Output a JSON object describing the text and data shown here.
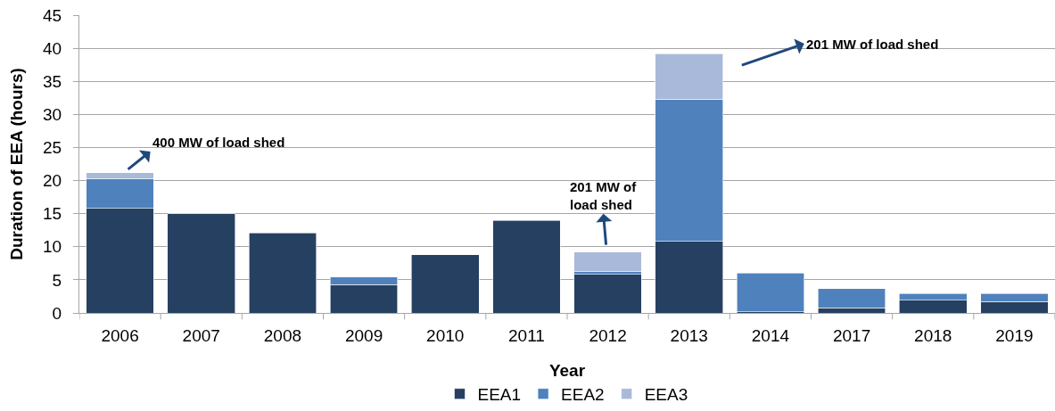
{
  "chart_data": {
    "type": "bar",
    "stacked": true,
    "categories": [
      "2006",
      "2007",
      "2008",
      "2009",
      "2010",
      "2011",
      "2012",
      "2013",
      "2014",
      "2017",
      "2018",
      "2019"
    ],
    "series": [
      {
        "name": "EEA1",
        "color": "#264061",
        "values": [
          15.8,
          15.0,
          12.1,
          4.3,
          8.8,
          14.0,
          5.8,
          10.8,
          0.2,
          0.8,
          1.9,
          1.7
        ]
      },
      {
        "name": "EEA2",
        "color": "#4f81bd",
        "values": [
          4.5,
          null,
          null,
          1.1,
          null,
          null,
          0.4,
          21.5,
          5.8,
          2.9,
          1.0,
          1.2
        ]
      },
      {
        "name": "EEA3",
        "color": "#a9b9d9",
        "values": [
          0.9,
          null,
          null,
          null,
          null,
          null,
          3.0,
          6.9,
          null,
          null,
          null,
          null
        ]
      }
    ],
    "xlabel": "Year",
    "ylabel": "Duration of EEA (hours)",
    "ylim": [
      0,
      45
    ],
    "yticks": [
      0,
      5,
      10,
      15,
      20,
      25,
      30,
      35,
      40,
      45
    ],
    "grid": "y",
    "legend": "bottom",
    "annotations": [
      {
        "text": "400 MW of load shed",
        "x": "2006",
        "y": 21.3
      },
      {
        "text": "201 MW of\nload shed",
        "x": "2012",
        "y": 9.2
      },
      "201 MW of load shed"
    ]
  }
}
